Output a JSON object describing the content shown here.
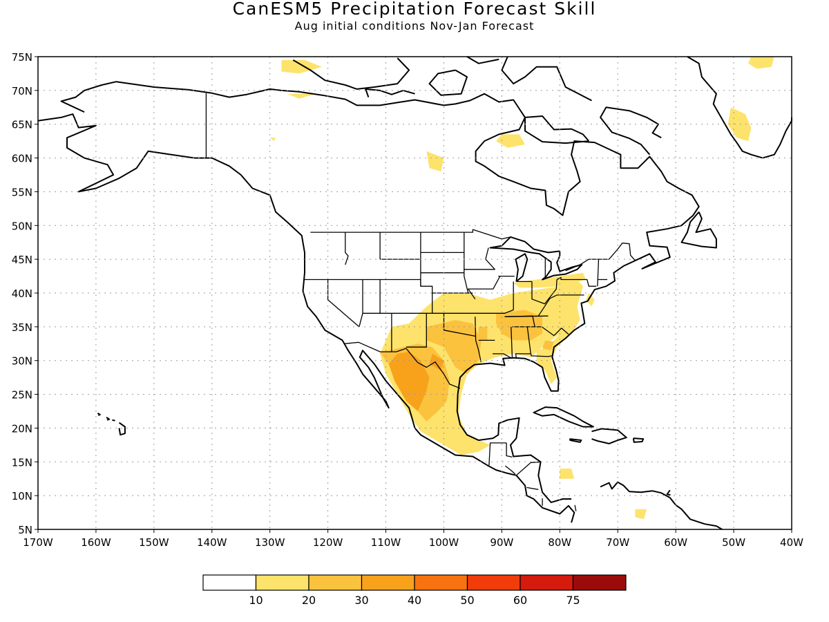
{
  "title": "CanESM5 Precipitation Forecast Skill",
  "subtitle": "Aug initial conditions  Nov-Jan Forecast",
  "map": {
    "lon_range": [
      -170,
      -40
    ],
    "lat_range": [
      5,
      75
    ],
    "grid": true,
    "lat_labels": [
      "5N",
      "10N",
      "15N",
      "20N",
      "25N",
      "30N",
      "35N",
      "40N",
      "45N",
      "50N",
      "55N",
      "60N",
      "65N",
      "70N",
      "75N"
    ],
    "lon_labels": [
      "170W",
      "160W",
      "150W",
      "140W",
      "130W",
      "120W",
      "110W",
      "100W",
      "90W",
      "80W",
      "70W",
      "60W",
      "50W",
      "40W"
    ]
  },
  "colorbar": {
    "labels": [
      "10",
      "20",
      "30",
      "40",
      "50",
      "60",
      "75"
    ],
    "colors": [
      "#ffffff",
      "#fde36b",
      "#fbc23e",
      "#f8a21c",
      "#f8720f",
      "#f23c0a",
      "#d51a0e",
      "#9c0b0b"
    ]
  },
  "skill_regions": [
    {
      "name": "southern-plains-southeast-band",
      "level": "10-20"
    },
    {
      "name": "texas-oklahoma-core",
      "level": "20-30"
    },
    {
      "name": "northern-mexico-core",
      "level": "30-40"
    },
    {
      "name": "tennessee-valley-core",
      "level": "20-30"
    },
    {
      "name": "arctic-and-greenland-patches",
      "level": "10-20"
    }
  ]
}
